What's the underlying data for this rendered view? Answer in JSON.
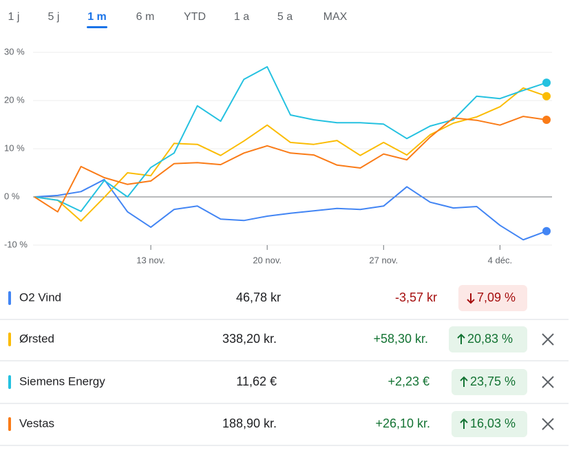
{
  "tabs": {
    "items": [
      "1 j",
      "5 j",
      "1 m",
      "6 m",
      "YTD",
      "1 a",
      "5 a",
      "MAX"
    ],
    "selected": 2
  },
  "chart_data": {
    "type": "line",
    "categories": [
      null,
      null,
      null,
      null,
      null,
      "13 nov.",
      null,
      null,
      null,
      null,
      "20 nov.",
      null,
      null,
      null,
      null,
      "27 nov.",
      null,
      null,
      null,
      null,
      "4 déc.",
      null,
      null
    ],
    "ylim": [
      -10,
      30
    ],
    "yticks": [
      {
        "value": 30,
        "label": "30 %"
      },
      {
        "value": 20,
        "label": "20 %"
      },
      {
        "value": 10,
        "label": "10 %"
      },
      {
        "value": 0,
        "label": "0 %"
      },
      {
        "value": -10,
        "label": "-10 %"
      }
    ],
    "grid": true,
    "series": [
      {
        "name": "O2 Vind",
        "color": "#4285f4",
        "values": [
          0,
          0.3,
          1.1,
          3.6,
          -3.1,
          -6.3,
          -2.6,
          -1.9,
          -4.6,
          -4.9,
          -4.0,
          -3.4,
          -2.9,
          -2.4,
          -2.6,
          -1.9,
          2.1,
          -1.1,
          -2.3,
          -2.0,
          -5.9,
          -8.9,
          -7.1
        ]
      },
      {
        "name": "Ørsted",
        "color": "#fbbc04",
        "values": [
          0,
          -0.7,
          -5.0,
          -0.1,
          5.0,
          4.4,
          11.1,
          10.9,
          8.6,
          11.6,
          14.9,
          11.3,
          10.9,
          11.7,
          8.6,
          11.3,
          8.7,
          12.9,
          15.3,
          16.6,
          18.7,
          22.6,
          20.9
        ]
      },
      {
        "name": "Siemens Energy",
        "color": "#24c1e0",
        "values": [
          0,
          -0.7,
          -3.0,
          3.4,
          0,
          6.1,
          9.1,
          18.9,
          15.7,
          24.4,
          27.0,
          17.0,
          16.0,
          15.4,
          15.4,
          15.1,
          12.1,
          14.7,
          16.0,
          20.9,
          20.4,
          22.1,
          23.7
        ]
      },
      {
        "name": "Vestas",
        "color": "#fa7b17",
        "values": [
          0,
          -3.1,
          6.3,
          4.0,
          2.6,
          3.3,
          6.9,
          7.1,
          6.7,
          9.1,
          10.6,
          9.1,
          8.7,
          6.6,
          6.0,
          8.9,
          7.7,
          12.4,
          16.4,
          15.9,
          14.9,
          16.7,
          16.0
        ]
      }
    ]
  },
  "rows": [
    {
      "price": "46,78 kr",
      "change": "-3,57 kr",
      "percent": "7,09 %"
    },
    {
      "price": "338,20 kr.",
      "change": "+58,30 kr.",
      "percent": "20,83 %"
    },
    {
      "price": "11,62 €",
      "change": "+2,23 €",
      "percent": "23,75 %"
    },
    {
      "price": "188,90 kr.",
      "change": "+26,10 kr.",
      "percent": "16,03 %"
    }
  ]
}
